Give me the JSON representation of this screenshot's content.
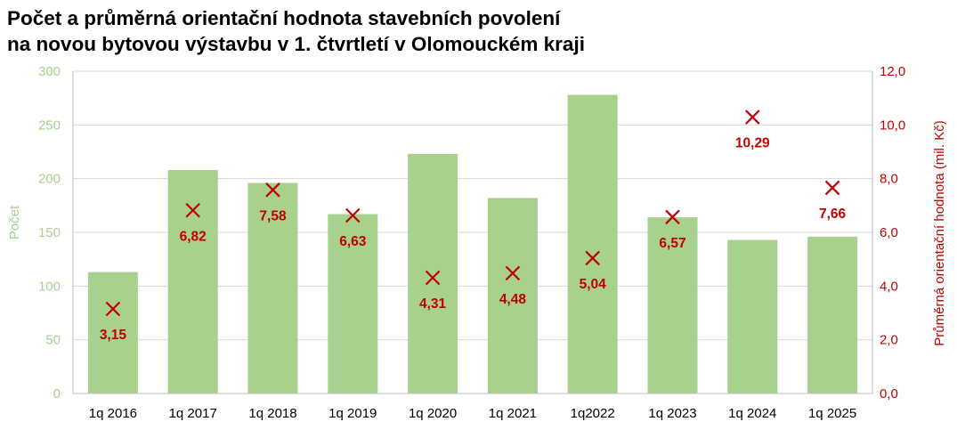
{
  "chart_data": {
    "type": "bar",
    "title_lines": [
      "Počet a průměrná orientační hodnota stavebních povolení",
      "na novou bytovou výstavbu v 1. čtvrtletí v Olomouckém kraji"
    ],
    "categories": [
      "1q 2016",
      "1q 2017",
      "1q 2018",
      "1q 2019",
      "1q 2020",
      "1q 2021",
      "1q2022",
      "1q 2023",
      "1q 2024",
      "1q 2025"
    ],
    "series": [
      {
        "name": "Počet",
        "type": "bar",
        "axis": "left",
        "color": "#a9d18e",
        "values": [
          113,
          208,
          196,
          167,
          223,
          182,
          278,
          164,
          143,
          146
        ]
      },
      {
        "name": "Průměrná orientační hodnota (mil. Kč)",
        "type": "scatter",
        "marker": "x",
        "axis": "right",
        "color": "#c00000",
        "values": [
          3.15,
          6.82,
          7.58,
          6.63,
          4.31,
          4.48,
          5.04,
          6.57,
          10.29,
          7.66
        ],
        "labels": [
          "3,15",
          "6,82",
          "7,58",
          "6,63",
          "4,31",
          "4,48",
          "5,04",
          "6,57",
          "10,29",
          "7,66"
        ]
      }
    ],
    "ylabel_left": "Počet",
    "ylabel_right": "Průměrná orientační hodnota (mil. Kč)",
    "ylim_left": [
      0,
      300
    ],
    "yticks_left": [
      "0",
      "50",
      "100",
      "150",
      "200",
      "250",
      "300"
    ],
    "ylim_right": [
      0,
      12
    ],
    "yticks_right": [
      "0,0",
      "2,0",
      "4,0",
      "6,0",
      "8,0",
      "10,0",
      "12,0"
    ],
    "grid": true,
    "left_axis_color": "#a9d18e",
    "right_axis_color": "#c00000"
  }
}
